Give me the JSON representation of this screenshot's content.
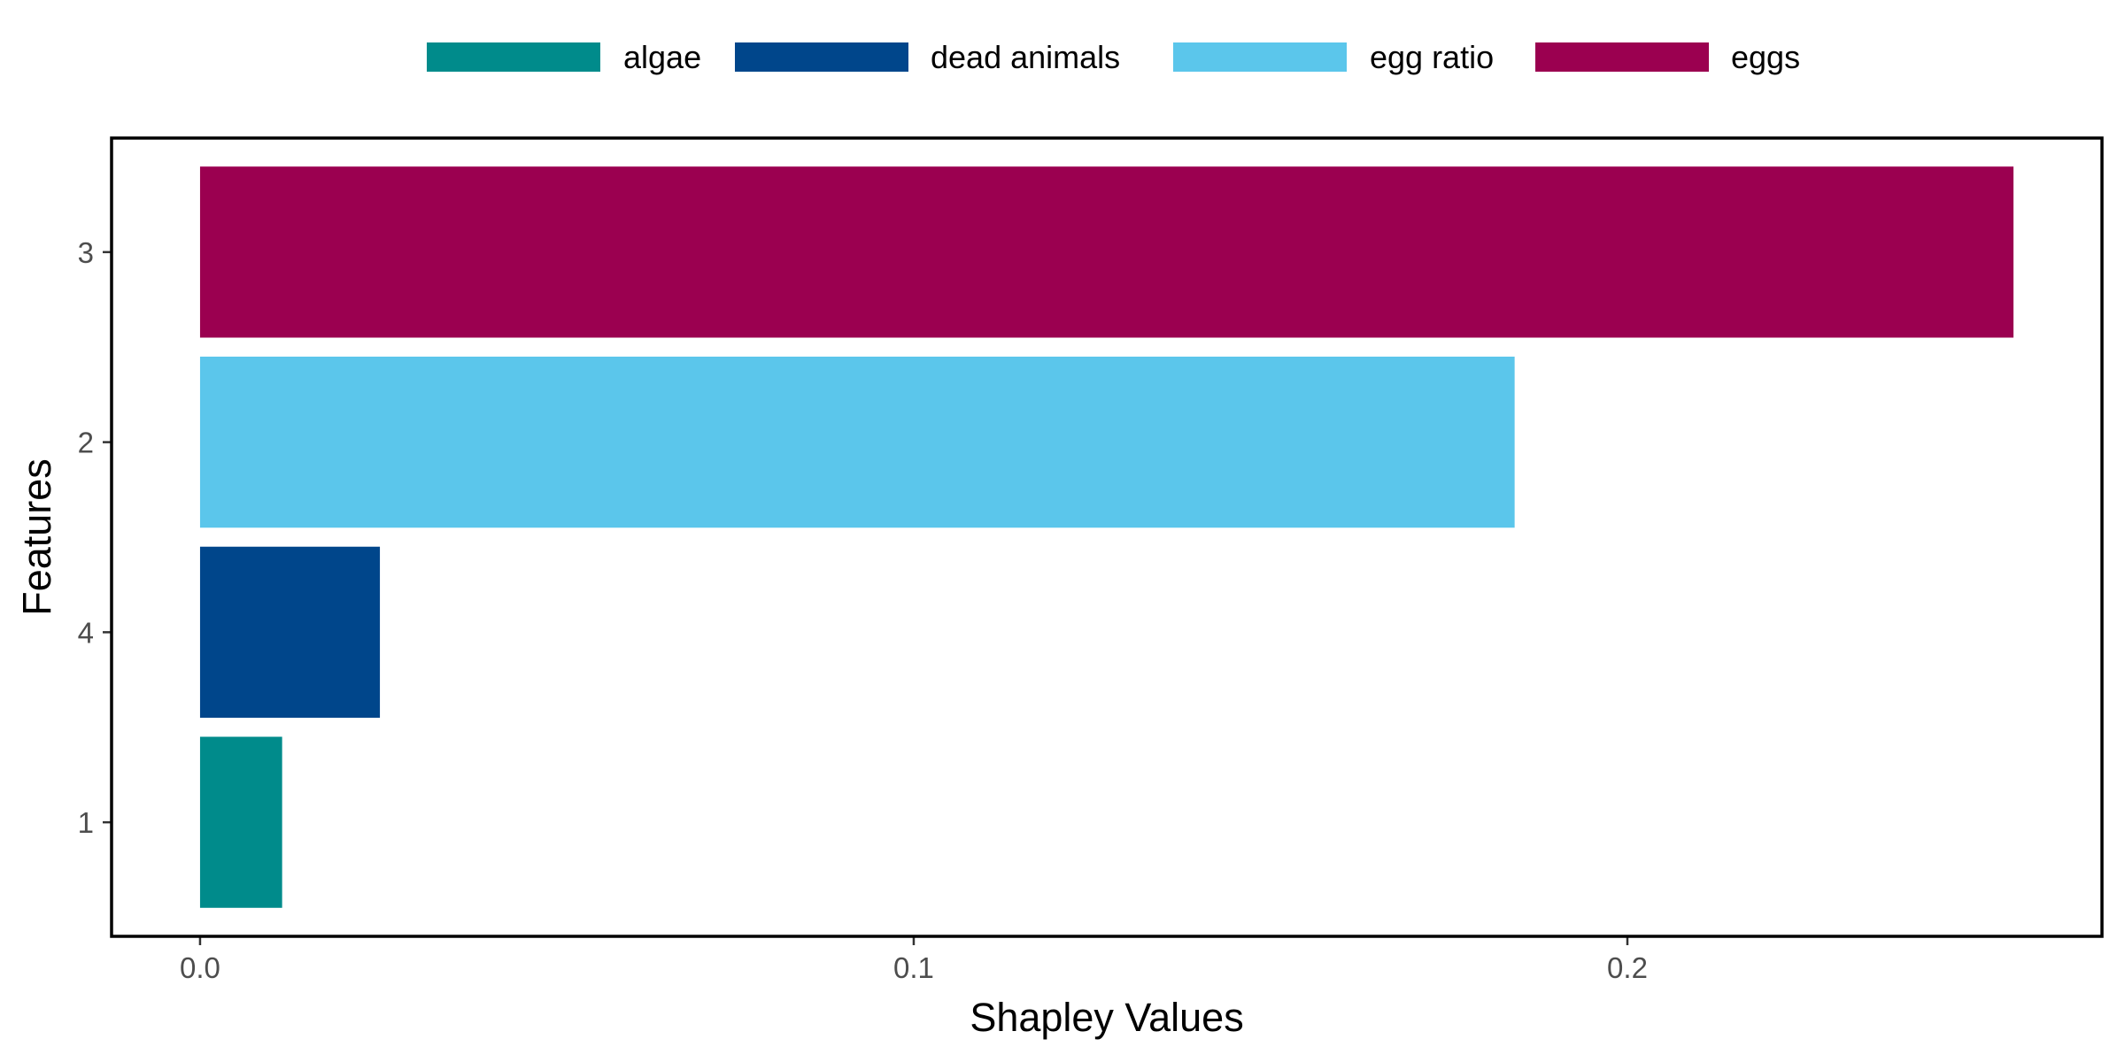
{
  "chart_data": {
    "type": "bar",
    "orientation": "horizontal",
    "title": "",
    "xlabel": "Shapley Values",
    "ylabel": "Features",
    "categories": [
      "1",
      "4",
      "2",
      "3"
    ],
    "values": [
      0.0115,
      0.0252,
      0.1842,
      0.2541
    ],
    "bar_series": [
      "algae",
      "dead animals",
      "egg ratio",
      "eggs"
    ],
    "xlim": [
      -0.0124,
      0.2665
    ],
    "x_ticks": [
      "0.0",
      "0.1",
      "0.2"
    ],
    "x_tick_values": [
      0.0,
      0.1,
      0.2
    ],
    "grid": false,
    "legend_position": "top",
    "legend": [
      {
        "name": "algae",
        "color": "#008B8B"
      },
      {
        "name": "dead animals",
        "color": "#00468B"
      },
      {
        "name": "egg ratio",
        "color": "#5BC6EB"
      },
      {
        "name": "eggs",
        "color": "#9B0050"
      }
    ]
  }
}
